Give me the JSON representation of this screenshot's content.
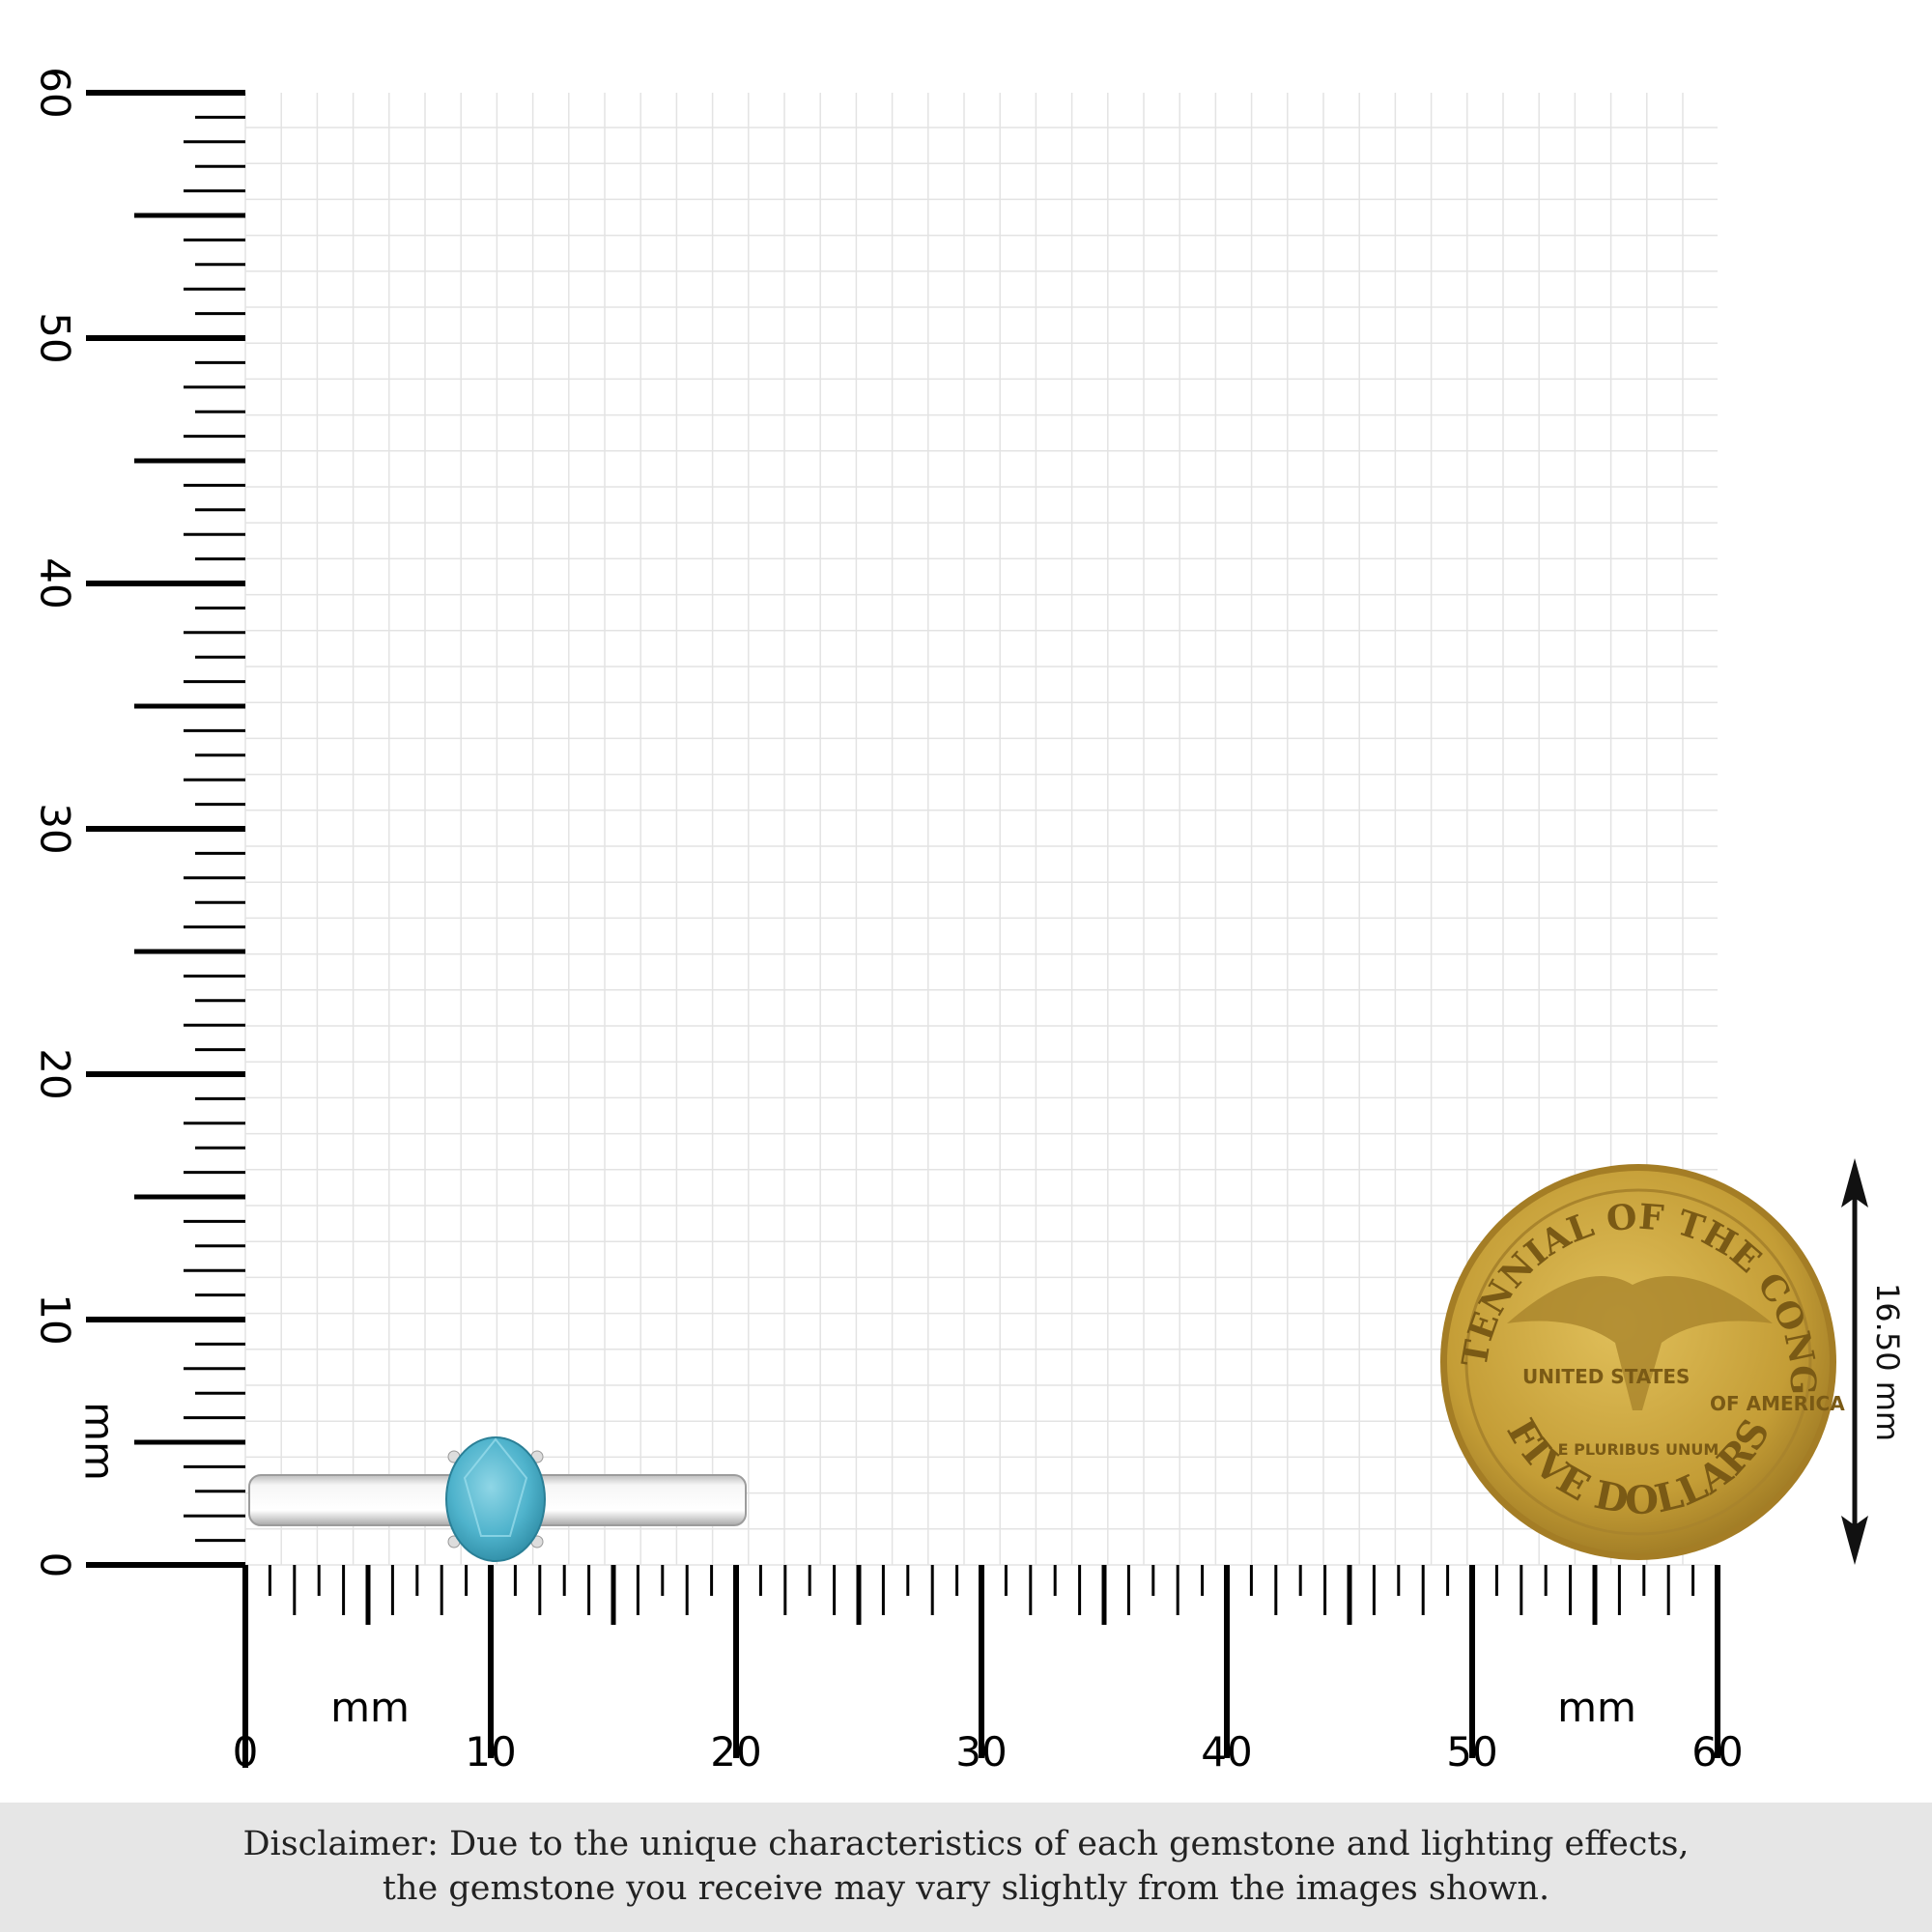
{
  "ruler": {
    "unit_label": "mm",
    "range_mm": [
      0,
      60
    ],
    "major_step_mm": 10,
    "minor_step_mm": 1,
    "x_labels": [
      "0",
      "10",
      "20",
      "30",
      "40",
      "50",
      "60"
    ],
    "y_labels": [
      "0",
      "10",
      "20",
      "30",
      "40",
      "50",
      "60"
    ]
  },
  "product": {
    "type": "solitaire ring",
    "gem_color": "#4fb3cc",
    "metal_color": "#e6e6e6"
  },
  "coin": {
    "diameter_label": "16.50 mm",
    "inscriptions": [
      "BICENTENNIAL OF THE CONGRESS",
      "UNITED STATES",
      "OF AMERICA",
      "E PLURIBUS UNUM",
      "FIVE DOLLARS"
    ],
    "color": "#c9a43c"
  },
  "disclaimer": {
    "line1": "Disclaimer: Due to the unique characteristics of each gemstone and lighting effects,",
    "line2": "the gemstone you receive may vary slightly from the images shown."
  }
}
